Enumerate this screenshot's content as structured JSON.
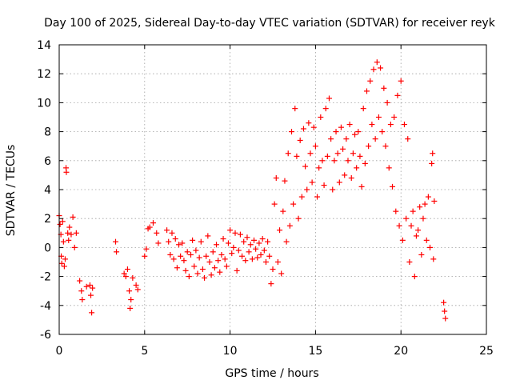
{
  "chart_data": {
    "type": "scatter",
    "title": "Day 100 of 2025, Sidereal Day-to-day VTEC variation (SDTVAR) for receiver reyk",
    "xlabel": "GPS time / hours",
    "ylabel": "SDTVAR / TECUs",
    "xlim": [
      0,
      25
    ],
    "ylim": [
      -6,
      14
    ],
    "xticks": [
      "0",
      "5",
      "10",
      "15",
      "20",
      "25"
    ],
    "xtick_values": [
      0,
      5,
      10,
      15,
      20,
      25
    ],
    "yticks": [
      "-6",
      "-4",
      "-2",
      "0",
      "2",
      "4",
      "6",
      "8",
      "10",
      "12",
      "14"
    ],
    "ytick_values": [
      -6,
      -4,
      -2,
      0,
      2,
      4,
      6,
      8,
      10,
      12,
      14
    ],
    "grid": true,
    "marker": "+",
    "color": "#ff0000",
    "series": [
      {
        "name": "SDTVAR",
        "points": [
          [
            0.0,
            2.2
          ],
          [
            0.05,
            1.6
          ],
          [
            0.1,
            0.9
          ],
          [
            0.12,
            -0.6
          ],
          [
            0.15,
            -1.1
          ],
          [
            0.2,
            1.8
          ],
          [
            0.25,
            0.4
          ],
          [
            0.3,
            -1.3
          ],
          [
            0.35,
            -0.8
          ],
          [
            0.4,
            5.5
          ],
          [
            0.42,
            5.2
          ],
          [
            0.5,
            1.0
          ],
          [
            0.55,
            0.5
          ],
          [
            0.6,
            1.4
          ],
          [
            0.7,
            0.9
          ],
          [
            0.8,
            2.1
          ],
          [
            0.9,
            0.0
          ],
          [
            1.0,
            1.0
          ],
          [
            1.2,
            -2.3
          ],
          [
            1.3,
            -3.0
          ],
          [
            1.35,
            -3.6
          ],
          [
            1.6,
            -2.7
          ],
          [
            1.8,
            -2.6
          ],
          [
            1.85,
            -3.3
          ],
          [
            1.9,
            -4.5
          ],
          [
            1.95,
            -2.8
          ],
          [
            3.3,
            0.4
          ],
          [
            3.35,
            -0.3
          ],
          [
            3.8,
            -1.8
          ],
          [
            3.9,
            -2.0
          ],
          [
            4.0,
            -1.5
          ],
          [
            4.1,
            -3.0
          ],
          [
            4.15,
            -4.2
          ],
          [
            4.2,
            -3.6
          ],
          [
            4.3,
            -2.1
          ],
          [
            4.5,
            -2.6
          ],
          [
            4.6,
            -2.9
          ],
          [
            5.0,
            -0.6
          ],
          [
            5.1,
            -0.1
          ],
          [
            5.2,
            1.3
          ],
          [
            5.3,
            1.4
          ],
          [
            5.5,
            1.7
          ],
          [
            5.7,
            1.0
          ],
          [
            5.8,
            0.3
          ],
          [
            6.3,
            1.2
          ],
          [
            6.4,
            0.4
          ],
          [
            6.5,
            -0.5
          ],
          [
            6.6,
            1.0
          ],
          [
            6.7,
            -0.8
          ],
          [
            6.8,
            0.6
          ],
          [
            6.9,
            -1.4
          ],
          [
            7.0,
            0.2
          ],
          [
            7.1,
            -0.6
          ],
          [
            7.2,
            0.3
          ],
          [
            7.3,
            -0.9
          ],
          [
            7.4,
            -1.6
          ],
          [
            7.5,
            -0.3
          ],
          [
            7.6,
            -2.0
          ],
          [
            7.7,
            -0.5
          ],
          [
            7.8,
            0.5
          ],
          [
            7.9,
            -1.3
          ],
          [
            8.0,
            -0.2
          ],
          [
            8.1,
            -1.8
          ],
          [
            8.2,
            -0.7
          ],
          [
            8.3,
            0.4
          ],
          [
            8.4,
            -1.5
          ],
          [
            8.5,
            -2.1
          ],
          [
            8.6,
            -0.6
          ],
          [
            8.7,
            0.8
          ],
          [
            8.8,
            -1.0
          ],
          [
            8.9,
            -1.9
          ],
          [
            9.0,
            -0.3
          ],
          [
            9.1,
            -1.4
          ],
          [
            9.2,
            0.2
          ],
          [
            9.3,
            -0.9
          ],
          [
            9.4,
            -1.7
          ],
          [
            9.5,
            -0.5
          ],
          [
            9.6,
            0.6
          ],
          [
            9.7,
            -0.8
          ],
          [
            9.8,
            -1.3
          ],
          [
            9.9,
            0.3
          ],
          [
            10.0,
            1.2
          ],
          [
            10.1,
            -0.4
          ],
          [
            10.2,
            0.0
          ],
          [
            10.3,
            1.0
          ],
          [
            10.4,
            -1.6
          ],
          [
            10.5,
            -0.2
          ],
          [
            10.6,
            0.9
          ],
          [
            10.7,
            -0.6
          ],
          [
            10.8,
            0.4
          ],
          [
            10.9,
            -0.9
          ],
          [
            11.0,
            0.7
          ],
          [
            11.1,
            -0.3
          ],
          [
            11.2,
            0.2
          ],
          [
            11.3,
            -0.8
          ],
          [
            11.4,
            0.5
          ],
          [
            11.5,
            -0.1
          ],
          [
            11.6,
            -0.7
          ],
          [
            11.7,
            0.3
          ],
          [
            11.8,
            -0.5
          ],
          [
            11.9,
            0.6
          ],
          [
            12.0,
            -0.2
          ],
          [
            12.1,
            -1.0
          ],
          [
            12.2,
            0.4
          ],
          [
            12.3,
            -0.6
          ],
          [
            12.4,
            -2.5
          ],
          [
            12.5,
            -1.5
          ],
          [
            12.6,
            3.0
          ],
          [
            12.7,
            4.8
          ],
          [
            12.8,
            -1.0
          ],
          [
            12.9,
            1.2
          ],
          [
            13.0,
            -1.8
          ],
          [
            13.1,
            2.5
          ],
          [
            13.2,
            4.6
          ],
          [
            13.3,
            0.4
          ],
          [
            13.4,
            6.5
          ],
          [
            13.5,
            1.5
          ],
          [
            13.6,
            8.0
          ],
          [
            13.7,
            3.0
          ],
          [
            13.8,
            9.6
          ],
          [
            13.9,
            6.3
          ],
          [
            14.0,
            2.0
          ],
          [
            14.1,
            7.4
          ],
          [
            14.2,
            3.5
          ],
          [
            14.3,
            8.2
          ],
          [
            14.4,
            5.6
          ],
          [
            14.5,
            4.0
          ],
          [
            14.6,
            8.6
          ],
          [
            14.7,
            6.5
          ],
          [
            14.8,
            4.5
          ],
          [
            14.9,
            8.3
          ],
          [
            15.0,
            7.0
          ],
          [
            15.1,
            3.5
          ],
          [
            15.2,
            5.5
          ],
          [
            15.3,
            9.0
          ],
          [
            15.4,
            6.0
          ],
          [
            15.5,
            4.3
          ],
          [
            15.6,
            9.6
          ],
          [
            15.7,
            6.3
          ],
          [
            15.8,
            10.3
          ],
          [
            15.9,
            7.5
          ],
          [
            16.0,
            4.0
          ],
          [
            16.1,
            6.0
          ],
          [
            16.2,
            8.0
          ],
          [
            16.3,
            6.5
          ],
          [
            16.4,
            4.5
          ],
          [
            16.5,
            8.3
          ],
          [
            16.6,
            6.8
          ],
          [
            16.7,
            5.0
          ],
          [
            16.8,
            7.5
          ],
          [
            16.9,
            6.0
          ],
          [
            17.0,
            8.5
          ],
          [
            17.1,
            4.8
          ],
          [
            17.2,
            6.5
          ],
          [
            17.3,
            7.8
          ],
          [
            17.4,
            5.5
          ],
          [
            17.5,
            8.0
          ],
          [
            17.6,
            6.3
          ],
          [
            17.7,
            4.2
          ],
          [
            17.8,
            9.6
          ],
          [
            17.9,
            5.8
          ],
          [
            18.0,
            10.8
          ],
          [
            18.1,
            7.0
          ],
          [
            18.2,
            11.5
          ],
          [
            18.3,
            8.5
          ],
          [
            18.4,
            12.3
          ],
          [
            18.5,
            7.5
          ],
          [
            18.6,
            12.8
          ],
          [
            18.7,
            9.0
          ],
          [
            18.8,
            12.4
          ],
          [
            18.9,
            8.0
          ],
          [
            19.0,
            11.0
          ],
          [
            19.1,
            7.0
          ],
          [
            19.2,
            10.0
          ],
          [
            19.3,
            5.5
          ],
          [
            19.4,
            8.5
          ],
          [
            19.5,
            4.2
          ],
          [
            19.6,
            9.0
          ],
          [
            19.7,
            2.5
          ],
          [
            19.8,
            10.5
          ],
          [
            19.9,
            1.5
          ],
          [
            20.0,
            11.5
          ],
          [
            20.1,
            0.5
          ],
          [
            20.2,
            8.5
          ],
          [
            20.3,
            2.0
          ],
          [
            20.4,
            7.5
          ],
          [
            20.5,
            -1.0
          ],
          [
            20.6,
            1.5
          ],
          [
            20.7,
            2.5
          ],
          [
            20.8,
            -2.0
          ],
          [
            20.9,
            0.8
          ],
          [
            21.0,
            1.2
          ],
          [
            21.1,
            2.8
          ],
          [
            21.2,
            -0.5
          ],
          [
            21.3,
            2.0
          ],
          [
            21.4,
            3.0
          ],
          [
            21.5,
            0.5
          ],
          [
            21.6,
            3.5
          ],
          [
            21.7,
            0.0
          ],
          [
            21.8,
            5.8
          ],
          [
            21.85,
            6.5
          ],
          [
            21.9,
            -0.8
          ],
          [
            21.95,
            3.2
          ],
          [
            22.5,
            -3.8
          ],
          [
            22.55,
            -4.4
          ],
          [
            22.6,
            -4.9
          ]
        ]
      }
    ]
  }
}
